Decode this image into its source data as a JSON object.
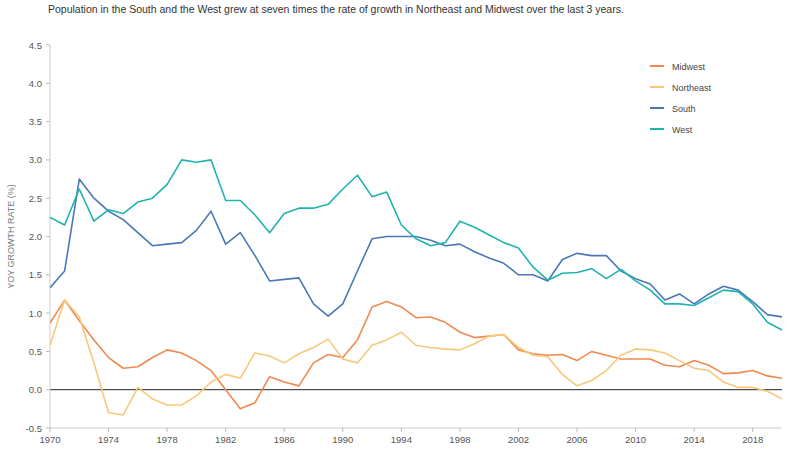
{
  "chart_data": {
    "type": "line",
    "title": "Population in the South and the West grew at seven times the rate of growth in Northeast and Midwest over the last 3 years.",
    "y_label": "YOY GROWTH RATE (%)",
    "x": [
      1970,
      1971,
      1972,
      1973,
      1974,
      1975,
      1976,
      1977,
      1978,
      1979,
      1980,
      1981,
      1982,
      1983,
      1984,
      1985,
      1986,
      1987,
      1988,
      1989,
      1990,
      1991,
      1992,
      1993,
      1994,
      1995,
      1996,
      1997,
      1998,
      1999,
      2000,
      2001,
      2002,
      2003,
      2004,
      2005,
      2006,
      2007,
      2008,
      2009,
      2010,
      2011,
      2012,
      2013,
      2014,
      2015,
      2016,
      2017,
      2018,
      2019,
      2020
    ],
    "series": [
      {
        "name": "Midwest",
        "color": "#f0894f",
        "values": [
          0.87,
          1.17,
          0.9,
          0.65,
          0.42,
          0.28,
          0.3,
          0.42,
          0.52,
          0.48,
          0.38,
          0.25,
          0.0,
          -0.25,
          -0.17,
          0.17,
          0.1,
          0.05,
          0.35,
          0.46,
          0.42,
          0.65,
          1.08,
          1.15,
          1.08,
          0.94,
          0.95,
          0.88,
          0.75,
          0.68,
          0.7,
          0.72,
          0.52,
          0.47,
          0.45,
          0.46,
          0.38,
          0.5,
          0.45,
          0.4,
          0.4,
          0.4,
          0.32,
          0.3,
          0.38,
          0.32,
          0.21,
          0.22,
          0.25,
          0.18,
          0.15
        ]
      },
      {
        "name": "Northeast",
        "color": "#f8c77a",
        "values": [
          0.58,
          1.17,
          0.95,
          0.35,
          -0.3,
          -0.33,
          0.03,
          -0.12,
          -0.2,
          -0.2,
          -0.08,
          0.1,
          0.2,
          0.15,
          0.48,
          0.44,
          0.35,
          0.47,
          0.55,
          0.66,
          0.4,
          0.35,
          0.58,
          0.65,
          0.75,
          0.58,
          0.55,
          0.53,
          0.52,
          0.6,
          0.7,
          0.72,
          0.55,
          0.45,
          0.43,
          0.2,
          0.05,
          0.12,
          0.25,
          0.45,
          0.53,
          0.52,
          0.48,
          0.38,
          0.28,
          0.25,
          0.1,
          0.03,
          0.03,
          -0.02,
          -0.12
        ]
      },
      {
        "name": "South",
        "color": "#4a78b5",
        "values": [
          1.33,
          1.55,
          2.75,
          2.5,
          2.33,
          2.22,
          2.05,
          1.88,
          1.9,
          1.92,
          2.08,
          2.33,
          1.9,
          2.05,
          1.75,
          1.42,
          1.44,
          1.46,
          1.12,
          0.96,
          1.12,
          1.55,
          1.97,
          2.0,
          2.0,
          2.0,
          1.95,
          1.88,
          1.9,
          1.8,
          1.72,
          1.65,
          1.5,
          1.5,
          1.42,
          1.7,
          1.78,
          1.75,
          1.75,
          1.55,
          1.45,
          1.38,
          1.17,
          1.25,
          1.12,
          1.25,
          1.35,
          1.3,
          1.15,
          0.98,
          0.95
        ]
      },
      {
        "name": "West",
        "color": "#1fb3b0",
        "values": [
          2.25,
          2.15,
          2.62,
          2.2,
          2.35,
          2.3,
          2.45,
          2.5,
          2.68,
          3.0,
          2.97,
          3.0,
          2.47,
          2.47,
          2.28,
          2.05,
          2.3,
          2.37,
          2.37,
          2.42,
          2.62,
          2.8,
          2.52,
          2.58,
          2.15,
          1.97,
          1.88,
          1.92,
          2.2,
          2.12,
          2.02,
          1.92,
          1.85,
          1.6,
          1.43,
          1.52,
          1.53,
          1.58,
          1.45,
          1.57,
          1.42,
          1.3,
          1.12,
          1.12,
          1.1,
          1.2,
          1.3,
          1.28,
          1.12,
          0.88,
          0.78
        ]
      }
    ],
    "xlim": [
      1970,
      2020
    ],
    "xticks": [
      1970,
      1974,
      1978,
      1982,
      1986,
      1990,
      1994,
      1998,
      2002,
      2006,
      2010,
      2014,
      2018
    ],
    "ylim": [
      -0.5,
      4.5
    ],
    "yticks": [
      -0.5,
      {
        "value": 0,
        "label": "0.0"
      },
      0.5,
      {
        "value": 1,
        "label": "1.0"
      },
      1.5,
      {
        "value": 2,
        "label": "2.0"
      },
      2.5,
      {
        "value": 3,
        "label": "3.0"
      },
      3.5,
      {
        "value": 4,
        "label": "4.0"
      },
      4.5
    ],
    "grid": false,
    "legend": "upper right"
  }
}
